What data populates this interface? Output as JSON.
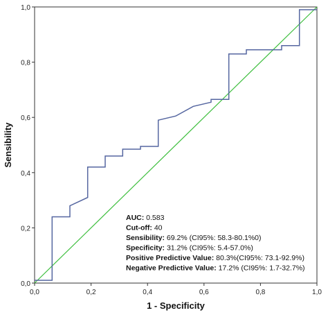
{
  "chart_data": {
    "type": "line",
    "xlabel": "1 - Specificity",
    "ylabel": "Sensibility",
    "xlim": [
      0,
      1
    ],
    "ylim": [
      0,
      1
    ],
    "xticks": [
      "0,0",
      "0,2",
      "0,4",
      "0,6",
      "0,8",
      "1,0"
    ],
    "yticks": [
      "0,0",
      "0,2",
      "0,4",
      "0,6",
      "0,8",
      "1,0"
    ],
    "xtick_values": [
      0,
      0.2,
      0.4,
      0.6,
      0.8,
      1.0
    ],
    "ytick_values": [
      0,
      0.2,
      0.4,
      0.6,
      0.8,
      1.0
    ],
    "grid": false,
    "series": [
      {
        "color": "#5566a0",
        "x": [
          0.0,
          0.062,
          0.062,
          0.125,
          0.125,
          0.188,
          0.188,
          0.25,
          0.25,
          0.312,
          0.312,
          0.375,
          0.375,
          0.438,
          0.438,
          0.5,
          0.562,
          0.625,
          0.625,
          0.688,
          0.688,
          0.75,
          0.75,
          0.812,
          0.875,
          0.875,
          0.938,
          0.938,
          1.0
        ],
        "y": [
          0.01,
          0.01,
          0.24,
          0.24,
          0.28,
          0.31,
          0.42,
          0.42,
          0.46,
          0.46,
          0.485,
          0.485,
          0.495,
          0.495,
          0.59,
          0.605,
          0.64,
          0.655,
          0.665,
          0.665,
          0.83,
          0.83,
          0.845,
          0.845,
          0.845,
          0.86,
          0.86,
          0.99,
          0.99
        ]
      },
      {
        "color": "#3fbf3f",
        "x": [
          0,
          1
        ],
        "y": [
          0,
          1
        ]
      }
    ],
    "annotations": [
      {
        "label": "AUC:",
        "value": " 0.583"
      },
      {
        "label": "Cut-off:",
        "value": " 40"
      },
      {
        "label": "Sensibility:",
        "value": " 69.2% (CI95%: 58.3-80.1%0)"
      },
      {
        "label": "Specificity:",
        "value": " 31.2% (CI95%: 5.4-57.0%)"
      },
      {
        "label": "Positive Predictive Value:",
        "value": " 80.3%(CI95%: 73.1-92.9%)"
      },
      {
        "label": "Negative Predictive Value:",
        "value": " 17.2% (CI95%: 1.7-32.7%)"
      }
    ]
  }
}
